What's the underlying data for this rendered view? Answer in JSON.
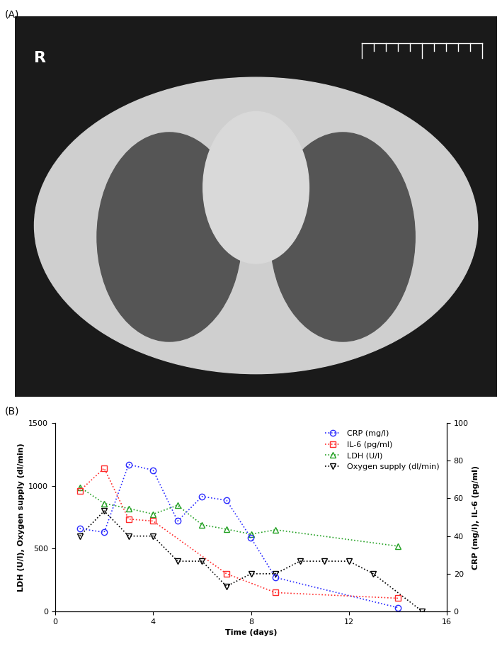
{
  "panel_labels": [
    "(A)",
    "(B)"
  ],
  "image_text": "R",
  "chart_data": {
    "type": "line",
    "xlabel": "Time (days)",
    "ylabel": "LDH (U/l), Oxygen supply (dl/min)",
    "y2label": "CRP (mg/l), IL-6 (pg/ml)",
    "xlim": [
      0,
      16
    ],
    "xticks": [
      0,
      4,
      8,
      12,
      16
    ],
    "ylim": [
      0,
      1500
    ],
    "yticks": [
      0,
      500,
      1000,
      1500
    ],
    "y2lim": [
      0,
      100
    ],
    "y2ticks": [
      0,
      20,
      40,
      60,
      80,
      100
    ],
    "legend": "upper right",
    "grid": false,
    "line_style": "dotted",
    "series": [
      {
        "name": "CRP (mg/l)",
        "color": "#2b2bff",
        "marker": "circle",
        "axis": "y2",
        "x": [
          1,
          2,
          3,
          4,
          5,
          6,
          7,
          8,
          9,
          14
        ],
        "values": [
          44,
          42,
          78,
          75,
          48,
          61,
          59,
          39,
          18,
          2
        ]
      },
      {
        "name": "IL-6 (pg/ml)",
        "color": "#ff2b2b",
        "marker": "square",
        "axis": "y2",
        "x": [
          1,
          2,
          3,
          4,
          7,
          9,
          14
        ],
        "values": [
          64,
          76,
          49,
          48,
          20,
          10,
          7
        ]
      },
      {
        "name": "LDH (U/l)",
        "color": "#22a022",
        "marker": "triangle_up",
        "axis": "y",
        "x": [
          1,
          2,
          3,
          4,
          5,
          6,
          7,
          8,
          9,
          14
        ],
        "values": [
          990,
          860,
          820,
          775,
          845,
          690,
          655,
          615,
          650,
          520
        ]
      },
      {
        "name": "Oxygen supply (dl/min)",
        "color": "#000000",
        "marker": "triangle_down",
        "axis": "y",
        "x": [
          1,
          2,
          3,
          4,
          5,
          6,
          7,
          8,
          9,
          10,
          11,
          12,
          13,
          15
        ],
        "values": [
          600,
          800,
          600,
          600,
          400,
          400,
          200,
          300,
          300,
          400,
          400,
          400,
          300,
          0
        ]
      }
    ]
  }
}
